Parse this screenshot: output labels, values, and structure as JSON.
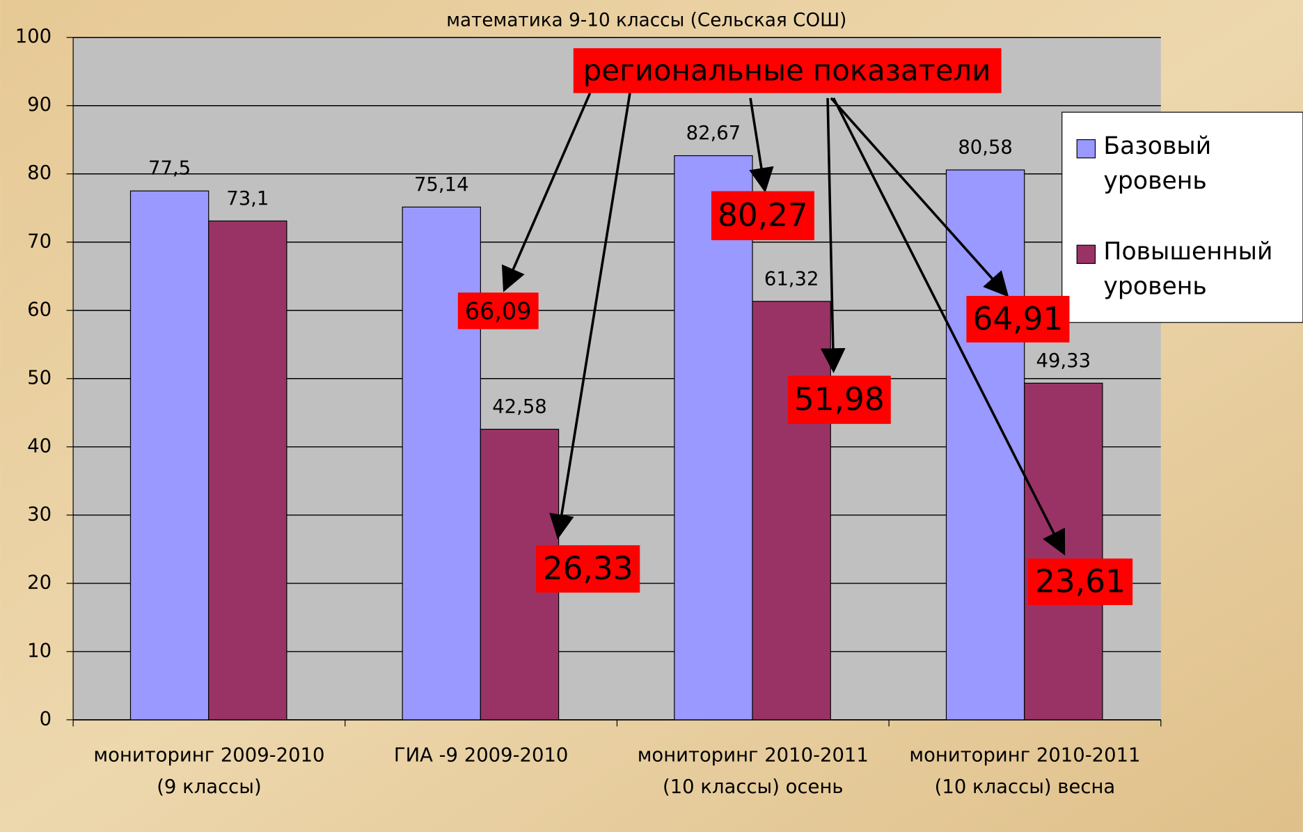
{
  "chart_data": {
    "type": "bar",
    "title": "математика 9-10 классы (Сельская СОШ)",
    "categories": [
      "мониторинг 2009-2010 (9 классы)",
      "ГИА -9 2009-2010",
      "мониторинг 2010-2011 (10 классы) осень",
      "мониторинг 2010-2011 (10 классы) весна"
    ],
    "series": [
      {
        "name": "Базовый уровень",
        "color": "#9999ff",
        "values": [
          77.5,
          75.14,
          82.67,
          80.58
        ],
        "value_labels": [
          "77,5",
          "75,14",
          "82,67",
          "80,58"
        ]
      },
      {
        "name": "Повышенный уровень",
        "color": "#993366",
        "values": [
          73.1,
          42.58,
          61.32,
          49.33
        ],
        "value_labels": [
          "73,1",
          "42,58",
          "61,32",
          "49,33"
        ]
      }
    ],
    "ylim": [
      0,
      100
    ],
    "yticks": [
      0,
      10,
      20,
      30,
      40,
      50,
      60,
      70,
      80,
      90,
      100
    ],
    "grid": true,
    "legend": "right",
    "annotation_title": "региональные показатели",
    "annotations": [
      "66,09",
      "26,33",
      "80,27",
      "51,98",
      "64,91",
      "23,61"
    ]
  }
}
